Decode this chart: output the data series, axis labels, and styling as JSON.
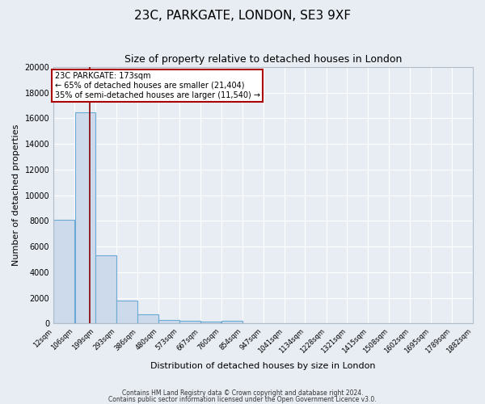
{
  "title": "23C, PARKGATE, LONDON, SE3 9XF",
  "subtitle": "Size of property relative to detached houses in London",
  "xlabel": "Distribution of detached houses by size in London",
  "ylabel": "Number of detached properties",
  "bar_values": [
    8100,
    16500,
    5300,
    1800,
    700,
    300,
    200,
    150,
    200,
    0,
    0,
    0,
    0,
    0,
    0,
    0,
    0,
    0,
    0,
    0
  ],
  "bin_edges": [
    12,
    106,
    199,
    293,
    386,
    480,
    573,
    667,
    760,
    854,
    947,
    1041,
    1134,
    1228,
    1321,
    1415,
    1508,
    1602,
    1695,
    1789,
    1882
  ],
  "tick_labels": [
    "12sqm",
    "106sqm",
    "199sqm",
    "293sqm",
    "386sqm",
    "480sqm",
    "573sqm",
    "667sqm",
    "760sqm",
    "854sqm",
    "947sqm",
    "1041sqm",
    "1134sqm",
    "1228sqm",
    "1321sqm",
    "1415sqm",
    "1508sqm",
    "1602sqm",
    "1695sqm",
    "1789sqm",
    "1882sqm"
  ],
  "bar_color": "#ccdaeb",
  "bar_edgecolor": "#6aaad4",
  "vline_x": 173,
  "vline_color": "#8b0000",
  "annotation_line1": "23C PARKGATE: 173sqm",
  "annotation_line2": "← 65% of detached houses are smaller (21,404)",
  "annotation_line3": "35% of semi-detached houses are larger (11,540) →",
  "annotation_box_facecolor": "#ffffff",
  "annotation_border_color": "#aa0000",
  "ylim": [
    0,
    20000
  ],
  "yticks": [
    0,
    2000,
    4000,
    6000,
    8000,
    10000,
    12000,
    14000,
    16000,
    18000,
    20000
  ],
  "footer1": "Contains HM Land Registry data © Crown copyright and database right 2024.",
  "footer2": "Contains public sector information licensed under the Open Government Licence v3.0.",
  "bg_color": "#e8edf4",
  "plot_bg_color": "#e8edf4",
  "grid_color": "#d0d8e4",
  "spine_color": "#b0bcc8"
}
